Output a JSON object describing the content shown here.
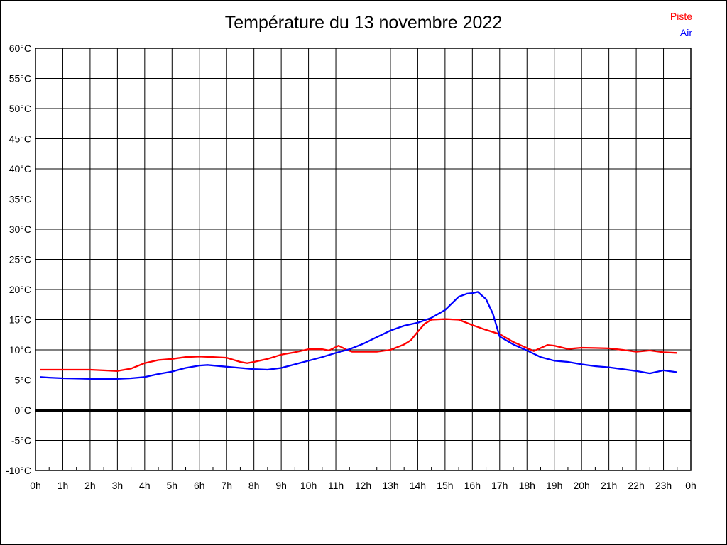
{
  "title": "Température du 13 novembre 2022",
  "legend": {
    "piste_label": "Piste",
    "air_label": "Air"
  },
  "colors": {
    "piste": "#ff0000",
    "air": "#0000ff",
    "grid": "#000000",
    "zero_line": "#000000",
    "background": "#ffffff",
    "text": "#000000"
  },
  "chart_data": {
    "type": "line",
    "title": "Température du 13 novembre 2022",
    "xlabel": "",
    "ylabel": "",
    "xlim": [
      0,
      24
    ],
    "ylim": [
      -10,
      60
    ],
    "grid": true,
    "x_tick_step_hours": 1,
    "x_minor_tick_step_hours": 0.5,
    "y_tick_step_degrees": 5,
    "x_tick_values": [
      0,
      1,
      2,
      3,
      4,
      5,
      6,
      7,
      8,
      9,
      10,
      11,
      12,
      13,
      14,
      15,
      16,
      17,
      18,
      19,
      20,
      21,
      22,
      23,
      24
    ],
    "x_tick_labels": [
      "0h",
      "1h",
      "2h",
      "3h",
      "4h",
      "5h",
      "6h",
      "7h",
      "8h",
      "9h",
      "10h",
      "11h",
      "12h",
      "13h",
      "14h",
      "15h",
      "16h",
      "17h",
      "18h",
      "19h",
      "20h",
      "21h",
      "22h",
      "23h",
      "0h"
    ],
    "y_tick_values": [
      60,
      55,
      50,
      45,
      40,
      35,
      30,
      25,
      20,
      15,
      10,
      5,
      0,
      -5,
      -10
    ],
    "y_tick_labels": [
      "60°C",
      "55°C",
      "50°C",
      "45°C",
      "40°C",
      "35°C",
      "30°C",
      "25°C",
      "20°C",
      "15°C",
      "10°C",
      "5°C",
      "0°C",
      "-5°C",
      "-10°C"
    ],
    "zero_line_value": 0,
    "legend_position": "top-right",
    "series": [
      {
        "name": "Piste",
        "color": "#ff0000",
        "points": [
          [
            0.17,
            6.7
          ],
          [
            1,
            6.7
          ],
          [
            2,
            6.7
          ],
          [
            2.5,
            6.6
          ],
          [
            3,
            6.5
          ],
          [
            3.5,
            6.9
          ],
          [
            4,
            7.8
          ],
          [
            4.5,
            8.3
          ],
          [
            5,
            8.5
          ],
          [
            5.5,
            8.8
          ],
          [
            6,
            8.9
          ],
          [
            6.5,
            8.8
          ],
          [
            7,
            8.7
          ],
          [
            7.5,
            8.0
          ],
          [
            7.75,
            7.8
          ],
          [
            8,
            8.0
          ],
          [
            8.5,
            8.5
          ],
          [
            9,
            9.2
          ],
          [
            9.5,
            9.6
          ],
          [
            10,
            10.1
          ],
          [
            10.5,
            10.1
          ],
          [
            10.75,
            9.9
          ],
          [
            11.1,
            10.7
          ],
          [
            11.4,
            10.0
          ],
          [
            11.6,
            9.7
          ],
          [
            12,
            9.7
          ],
          [
            12.5,
            9.7
          ],
          [
            13,
            10.0
          ],
          [
            13.5,
            10.9
          ],
          [
            13.75,
            11.6
          ],
          [
            14,
            13.0
          ],
          [
            14.25,
            14.3
          ],
          [
            14.5,
            15.0
          ],
          [
            15,
            15.1
          ],
          [
            15.5,
            15.0
          ],
          [
            16,
            14.1
          ],
          [
            16.5,
            13.3
          ],
          [
            17,
            12.6
          ],
          [
            17.5,
            11.3
          ],
          [
            18,
            10.3
          ],
          [
            18.25,
            9.8
          ],
          [
            18.75,
            10.8
          ],
          [
            19,
            10.7
          ],
          [
            19.5,
            10.15
          ],
          [
            20,
            10.35
          ],
          [
            20.5,
            10.3
          ],
          [
            21,
            10.25
          ],
          [
            21.5,
            10.0
          ],
          [
            22,
            9.7
          ],
          [
            22.5,
            9.9
          ],
          [
            23,
            9.6
          ],
          [
            23.5,
            9.5
          ]
        ]
      },
      {
        "name": "Air",
        "color": "#0000ff",
        "points": [
          [
            0.17,
            5.5
          ],
          [
            0.5,
            5.4
          ],
          [
            1,
            5.3
          ],
          [
            1.5,
            5.25
          ],
          [
            2,
            5.2
          ],
          [
            2.5,
            5.2
          ],
          [
            3,
            5.2
          ],
          [
            3.5,
            5.3
          ],
          [
            4,
            5.5
          ],
          [
            4.5,
            6.0
          ],
          [
            5,
            6.4
          ],
          [
            5.5,
            7.0
          ],
          [
            6,
            7.4
          ],
          [
            6.3,
            7.5
          ],
          [
            7,
            7.2
          ],
          [
            7.5,
            7.0
          ],
          [
            8,
            6.8
          ],
          [
            8.5,
            6.7
          ],
          [
            9,
            7.0
          ],
          [
            9.5,
            7.6
          ],
          [
            10,
            8.2
          ],
          [
            10.5,
            8.8
          ],
          [
            11,
            9.5
          ],
          [
            11.5,
            10.1
          ],
          [
            12,
            11.0
          ],
          [
            12.5,
            12.1
          ],
          [
            13,
            13.2
          ],
          [
            13.5,
            14.0
          ],
          [
            14,
            14.5
          ],
          [
            14.5,
            15.3
          ],
          [
            15,
            16.6
          ],
          [
            15.5,
            18.8
          ],
          [
            15.8,
            19.3
          ],
          [
            16,
            19.4
          ],
          [
            16.2,
            19.6
          ],
          [
            16.5,
            18.4
          ],
          [
            16.75,
            16.0
          ],
          [
            17,
            12.2
          ],
          [
            17.5,
            10.9
          ],
          [
            18,
            9.9
          ],
          [
            18.5,
            8.8
          ],
          [
            19,
            8.2
          ],
          [
            19.5,
            8.0
          ],
          [
            20,
            7.6
          ],
          [
            20.5,
            7.3
          ],
          [
            21,
            7.1
          ],
          [
            21.5,
            6.8
          ],
          [
            22,
            6.5
          ],
          [
            22.5,
            6.1
          ],
          [
            23,
            6.6
          ],
          [
            23.5,
            6.3
          ]
        ]
      }
    ]
  }
}
